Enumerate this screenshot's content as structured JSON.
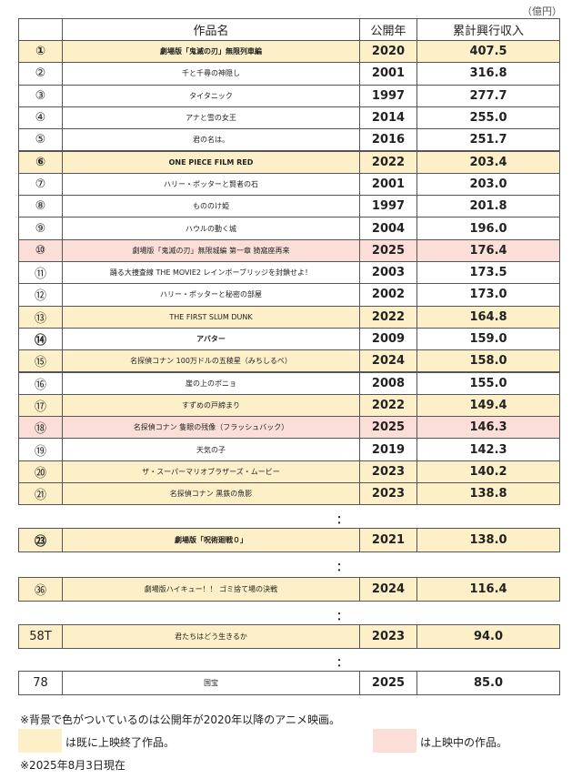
{
  "unit": "（億円）",
  "table": {
    "header": [
      "作品名",
      "公開年",
      "累計興行収入"
    ],
    "rows": [
      {
        "rank": "①",
        "title": "劇場版「鬼滅の刃」無限列車編",
        "year": "2020",
        "revenue": "407.5",
        "color": "#fdf0c8",
        "bold": true
      },
      {
        "rank": "②",
        "title": "千と千尋の神隠し",
        "year": "2001",
        "revenue": "316.8",
        "color": "#ffffff",
        "bold": false
      },
      {
        "rank": "③",
        "title": "タイタニック",
        "year": "1997",
        "revenue": "277.7",
        "color": "#ffffff",
        "bold": false
      },
      {
        "rank": "④",
        "title": "アナと雪の女王",
        "year": "2014",
        "revenue": "255.0",
        "color": "#ffffff",
        "bold": false
      },
      {
        "rank": "⑤",
        "title": "君の名は。",
        "year": "2016",
        "revenue": "251.7",
        "color": "#ffffff",
        "bold": false
      },
      {
        "rank": "⑥",
        "title": "ONE PIECE FILM RED",
        "year": "2022",
        "revenue": "203.4",
        "color": "#fdf0c8",
        "bold": true
      },
      {
        "rank": "⑦",
        "title": "ハリー・ポッターと賢者の石",
        "year": "2001",
        "revenue": "203.0",
        "color": "#ffffff",
        "bold": false
      },
      {
        "rank": "⑧",
        "title": "もののけ姫",
        "year": "1997",
        "revenue": "201.8",
        "color": "#ffffff",
        "bold": false
      },
      {
        "rank": "⑨",
        "title": "ハウルの動く城",
        "year": "2004",
        "revenue": "196.0",
        "color": "#ffffff",
        "bold": false
      },
      {
        "rank": "⑩",
        "title": "劇場版「鬼滅の刃」無限城編 第一章 猗窩座再来",
        "year": "2025",
        "revenue": "176.4",
        "color": "#fbded8",
        "bold": false
      },
      {
        "rank": "⑪",
        "title": "踊る大捜査線 THE MOVIE2 レインボーブリッジを封鎖せよ！",
        "year": "2003",
        "revenue": "173.5",
        "color": "#ffffff",
        "bold": false
      },
      {
        "rank": "⑫",
        "title": "ハリー・ポッターと秘密の部屋",
        "year": "2002",
        "revenue": "173.0",
        "color": "#ffffff",
        "bold": false
      },
      {
        "rank": "⑬",
        "title": "THE FIRST SLUM DUNK",
        "year": "2022",
        "revenue": "164.8",
        "color": "#fdf0c8",
        "bold": false
      },
      {
        "rank": "⑭",
        "title": "アバター",
        "year": "2009",
        "revenue": "159.0",
        "color": "#ffffff",
        "bold": true
      },
      {
        "rank": "⑮",
        "title": "名探偵コナン 100万ドルの五稜星（みちしるべ）",
        "year": "2024",
        "revenue": "158.0",
        "color": "#fdf0c8",
        "bold": false
      },
      {
        "rank": "⑯",
        "title": "崖の上のポニョ",
        "year": "2008",
        "revenue": "155.0",
        "color": "#ffffff",
        "bold": false
      },
      {
        "rank": "⑰",
        "title": "すずめの戸締まり",
        "year": "2022",
        "revenue": "149.4",
        "color": "#fdf0c8",
        "bold": false
      },
      {
        "rank": "⑱",
        "title": "名探偵コナン 隻眼の残像（フラッシュバック）",
        "year": "2025",
        "revenue": "146.3",
        "color": "#fbded8",
        "bold": false
      },
      {
        "rank": "⑲",
        "title": "天気の子",
        "year": "2019",
        "revenue": "142.3",
        "color": "#ffffff",
        "bold": false
      },
      {
        "rank": "⑳",
        "title": "ザ・スーパーマリオブラザーズ・ムービー",
        "year": "2023",
        "revenue": "140.2",
        "color": "#fdf0c8",
        "bold": false
      },
      {
        "rank": "㉑",
        "title": "名探偵コナン 黒鉄の魚影",
        "year": "2023",
        "revenue": "138.8",
        "color": "#fdf0c8",
        "bold": false
      }
    ]
  },
  "separator": "：",
  "extra_rows": [
    {
      "rank": "㉓",
      "title": "劇場版「呪術廻戦０」",
      "year": "2021",
      "revenue": "138.0",
      "color": "#fdf0c8",
      "bold": true
    },
    {
      "rank": "㊱",
      "title": "劇場版ハイキュー！！ ゴミ捨て場の決戦",
      "year": "2024",
      "revenue": "116.4",
      "color": "#fdf0c8",
      "bold": false
    },
    {
      "rank": "58T",
      "title": "君たちはどう生きるか",
      "year": "2023",
      "revenue": "94.0",
      "color": "#fdf0c8",
      "bold": false
    },
    {
      "rank": "78",
      "title": "国宝",
      "year": "2025",
      "revenue": "85.0",
      "color": "#ffffff",
      "bold": false
    }
  ],
  "note": "※背景で色がついているのは公開年が2020年以降のアニメ映画。",
  "legend": [
    {
      "text": "は既に上映終了作品。",
      "color": "#fdf0c8"
    },
    {
      "text": "は上映中の作品。",
      "color": "#fbded8"
    }
  ],
  "footnote": "※2025年8月3日現在"
}
